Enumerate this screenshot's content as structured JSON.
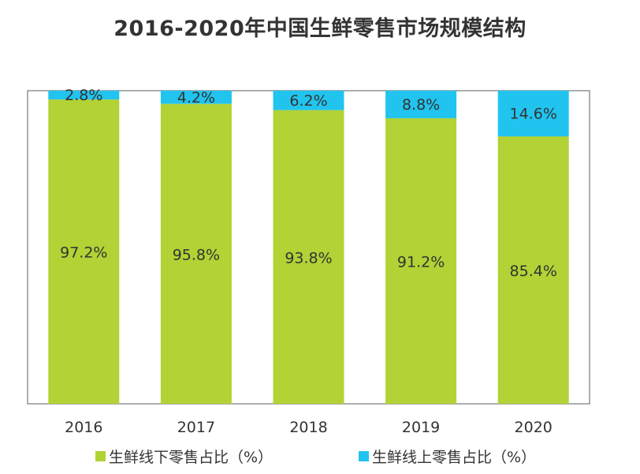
{
  "chart_data": {
    "type": "bar",
    "stacked": true,
    "title": "2016-2020年中国生鲜零售市场规模结构",
    "categories": [
      "2016",
      "2017",
      "2018",
      "2019",
      "2020"
    ],
    "series": [
      {
        "name": "生鲜线下零售占比（%）",
        "color": "#b2d235",
        "values": [
          97.2,
          95.8,
          93.8,
          91.2,
          85.4
        ],
        "labels": [
          "97.2%",
          "95.8%",
          "93.8%",
          "91.2%",
          "85.4%"
        ]
      },
      {
        "name": "生鲜线上零售占比（%）",
        "color": "#21c4ef",
        "values": [
          2.8,
          4.2,
          6.2,
          8.8,
          14.6
        ],
        "labels": [
          "2.8%",
          "4.2%",
          "6.2%",
          "8.8%",
          "14.6%"
        ]
      }
    ],
    "xlabel": "",
    "ylabel": "",
    "ylim": [
      0,
      100
    ],
    "grid": false,
    "legend": "bottom"
  }
}
